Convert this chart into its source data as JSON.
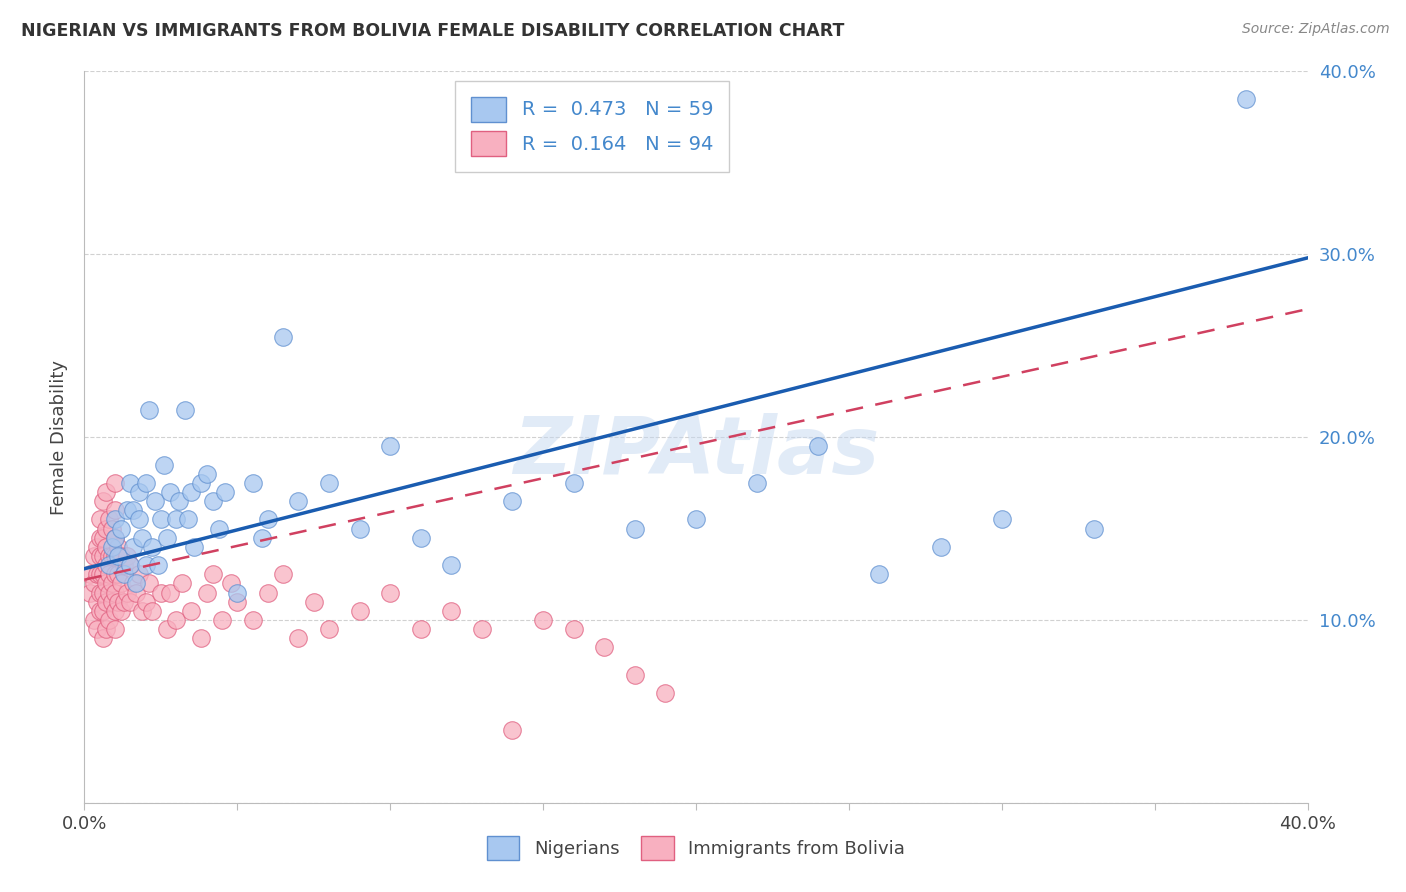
{
  "title": "NIGERIAN VS IMMIGRANTS FROM BOLIVIA FEMALE DISABILITY CORRELATION CHART",
  "source": "Source: ZipAtlas.com",
  "ylabel": "Female Disability",
  "xlim": [
    0.0,
    0.4
  ],
  "ylim": [
    0.0,
    0.4
  ],
  "xtick_positions": [
    0.0,
    0.05,
    0.1,
    0.15,
    0.2,
    0.25,
    0.3,
    0.35,
    0.4
  ],
  "xtick_labels": [
    "0.0%",
    "",
    "",
    "",
    "",
    "",
    "",
    "",
    "40.0%"
  ],
  "ytick_positions": [
    0.0,
    0.1,
    0.2,
    0.3,
    0.4
  ],
  "ytick_labels_right": [
    "",
    "10.0%",
    "20.0%",
    "30.0%",
    "40.0%"
  ],
  "blue_fill": "#a8c8f0",
  "blue_edge": "#6090d0",
  "pink_fill": "#f8b0c0",
  "pink_edge": "#e06080",
  "blue_line_color": "#1a5cb0",
  "pink_line_color": "#d04060",
  "R_blue": 0.473,
  "N_blue": 59,
  "R_pink": 0.164,
  "N_pink": 94,
  "legend_label_blue": "Nigerians",
  "legend_label_pink": "Immigrants from Bolivia",
  "watermark": "ZIPAtlas",
  "blue_line_start_y": 0.128,
  "blue_line_end_y": 0.298,
  "pink_line_start_y": 0.122,
  "pink_line_end_y": 0.27,
  "blue_points_x": [
    0.008,
    0.009,
    0.01,
    0.01,
    0.011,
    0.012,
    0.013,
    0.014,
    0.015,
    0.015,
    0.016,
    0.016,
    0.017,
    0.018,
    0.018,
    0.019,
    0.02,
    0.02,
    0.021,
    0.022,
    0.023,
    0.024,
    0.025,
    0.026,
    0.027,
    0.028,
    0.03,
    0.031,
    0.033,
    0.034,
    0.035,
    0.036,
    0.038,
    0.04,
    0.042,
    0.044,
    0.046,
    0.05,
    0.055,
    0.058,
    0.06,
    0.065,
    0.07,
    0.08,
    0.09,
    0.1,
    0.11,
    0.12,
    0.14,
    0.16,
    0.18,
    0.2,
    0.22,
    0.24,
    0.26,
    0.28,
    0.3,
    0.33,
    0.38
  ],
  "blue_points_y": [
    0.13,
    0.14,
    0.145,
    0.155,
    0.135,
    0.15,
    0.125,
    0.16,
    0.13,
    0.175,
    0.14,
    0.16,
    0.12,
    0.155,
    0.17,
    0.145,
    0.13,
    0.175,
    0.215,
    0.14,
    0.165,
    0.13,
    0.155,
    0.185,
    0.145,
    0.17,
    0.155,
    0.165,
    0.215,
    0.155,
    0.17,
    0.14,
    0.175,
    0.18,
    0.165,
    0.15,
    0.17,
    0.115,
    0.175,
    0.145,
    0.155,
    0.255,
    0.165,
    0.175,
    0.15,
    0.195,
    0.145,
    0.13,
    0.165,
    0.175,
    0.15,
    0.155,
    0.175,
    0.195,
    0.125,
    0.14,
    0.155,
    0.15,
    0.385
  ],
  "pink_points_x": [
    0.002,
    0.002,
    0.003,
    0.003,
    0.003,
    0.004,
    0.004,
    0.004,
    0.004,
    0.005,
    0.005,
    0.005,
    0.005,
    0.005,
    0.005,
    0.006,
    0.006,
    0.006,
    0.006,
    0.006,
    0.006,
    0.006,
    0.007,
    0.007,
    0.007,
    0.007,
    0.007,
    0.007,
    0.007,
    0.008,
    0.008,
    0.008,
    0.008,
    0.008,
    0.009,
    0.009,
    0.009,
    0.009,
    0.01,
    0.01,
    0.01,
    0.01,
    0.01,
    0.01,
    0.01,
    0.01,
    0.011,
    0.011,
    0.011,
    0.012,
    0.012,
    0.012,
    0.013,
    0.013,
    0.014,
    0.014,
    0.015,
    0.015,
    0.016,
    0.017,
    0.018,
    0.019,
    0.02,
    0.021,
    0.022,
    0.025,
    0.027,
    0.028,
    0.03,
    0.032,
    0.035,
    0.038,
    0.04,
    0.042,
    0.045,
    0.048,
    0.05,
    0.055,
    0.06,
    0.065,
    0.07,
    0.075,
    0.08,
    0.09,
    0.1,
    0.11,
    0.12,
    0.13,
    0.14,
    0.15,
    0.16,
    0.17,
    0.18,
    0.19
  ],
  "pink_points_y": [
    0.115,
    0.125,
    0.1,
    0.12,
    0.135,
    0.095,
    0.11,
    0.125,
    0.14,
    0.105,
    0.115,
    0.125,
    0.135,
    0.145,
    0.155,
    0.09,
    0.105,
    0.115,
    0.125,
    0.135,
    0.145,
    0.165,
    0.095,
    0.11,
    0.12,
    0.13,
    0.14,
    0.15,
    0.17,
    0.1,
    0.115,
    0.125,
    0.135,
    0.155,
    0.11,
    0.12,
    0.135,
    0.15,
    0.095,
    0.105,
    0.115,
    0.125,
    0.135,
    0.145,
    0.16,
    0.175,
    0.11,
    0.125,
    0.14,
    0.105,
    0.12,
    0.135,
    0.11,
    0.13,
    0.115,
    0.135,
    0.11,
    0.13,
    0.12,
    0.115,
    0.125,
    0.105,
    0.11,
    0.12,
    0.105,
    0.115,
    0.095,
    0.115,
    0.1,
    0.12,
    0.105,
    0.09,
    0.115,
    0.125,
    0.1,
    0.12,
    0.11,
    0.1,
    0.115,
    0.125,
    0.09,
    0.11,
    0.095,
    0.105,
    0.115,
    0.095,
    0.105,
    0.095,
    0.04,
    0.1,
    0.095,
    0.085,
    0.07,
    0.06
  ]
}
